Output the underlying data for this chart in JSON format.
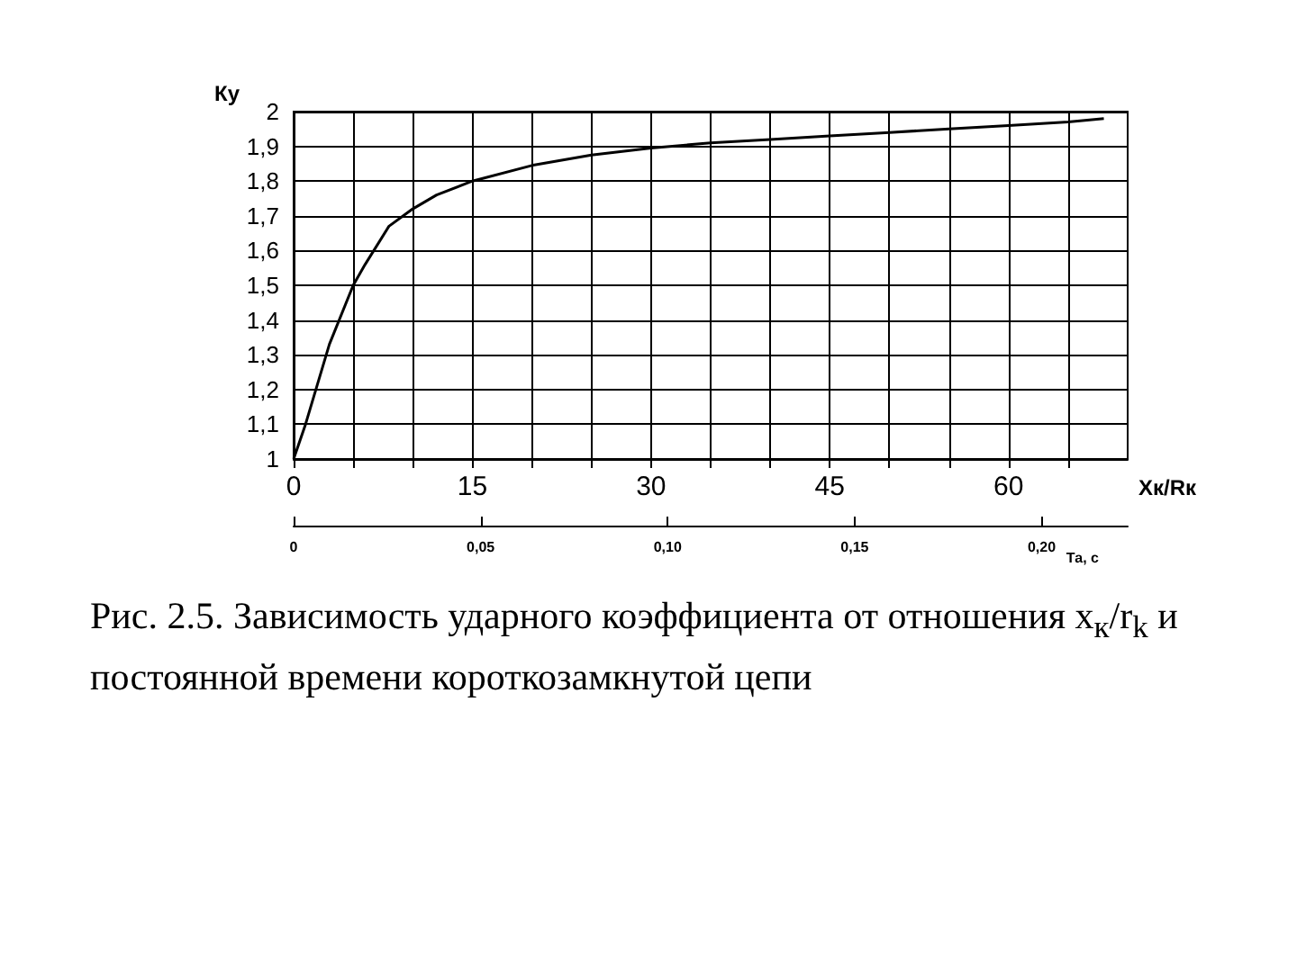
{
  "chart_data": {
    "type": "line",
    "ylabel": "Ку",
    "xlabel": "Xк/Rк",
    "x2label": "Та, с",
    "x": [
      0,
      1,
      3,
      5,
      6,
      8,
      10,
      12,
      15,
      20,
      25,
      30,
      35,
      40,
      45,
      50,
      55,
      60,
      65,
      68
    ],
    "series": [
      {
        "color": "#000000",
        "values": [
          1,
          1.1,
          1.33,
          1.5,
          1.56,
          1.67,
          1.72,
          1.76,
          1.8,
          1.845,
          1.875,
          1.895,
          1.91,
          1.92,
          1.93,
          1.94,
          1.95,
          1.96,
          1.97,
          1.98
        ]
      }
    ],
    "xlim": [
      0,
      70
    ],
    "xticks": [
      0,
      {
        "value": 5,
        "label": null
      },
      {
        "value": 10,
        "label": null
      },
      15,
      {
        "value": 20,
        "label": null
      },
      {
        "value": 25,
        "label": null
      },
      30,
      {
        "value": 35,
        "label": null
      },
      {
        "value": 40,
        "label": null
      },
      45,
      {
        "value": 50,
        "label": null
      },
      {
        "value": 55,
        "label": null
      },
      60,
      {
        "value": 65,
        "label": null
      }
    ],
    "ylim": [
      1,
      2
    ],
    "yticks": [
      1,
      {
        "value": 1.1,
        "label": "1,1"
      },
      {
        "value": 1.2,
        "label": "1,2"
      },
      {
        "value": 1.3,
        "label": "1,3"
      },
      {
        "value": 1.4,
        "label": "1,4"
      },
      {
        "value": 1.5,
        "label": "1,5"
      },
      {
        "value": 1.6,
        "label": "1,6"
      },
      {
        "value": 1.7,
        "label": "1,7"
      },
      {
        "value": 1.8,
        "label": "1,8"
      },
      {
        "value": 1.9,
        "label": "1,9"
      },
      2
    ],
    "x2lim": [
      0,
      0.223
    ],
    "x2ticks": [
      0,
      {
        "value": 0.05,
        "label": "0,05"
      },
      {
        "value": 0.1,
        "label": "0,10"
      },
      {
        "value": 0.15,
        "label": "0,15"
      },
      {
        "value": 0.2,
        "label": "0,20"
      }
    ],
    "grid": true,
    "marker": "none",
    "line_style": "solid",
    "annotations": [
      "Рис. 2.5. Зависимость ударного коэффициента от отношения x$_{к}$/r$_{k}$ и постоянной времени короткозамкнутой цепи"
    ]
  }
}
